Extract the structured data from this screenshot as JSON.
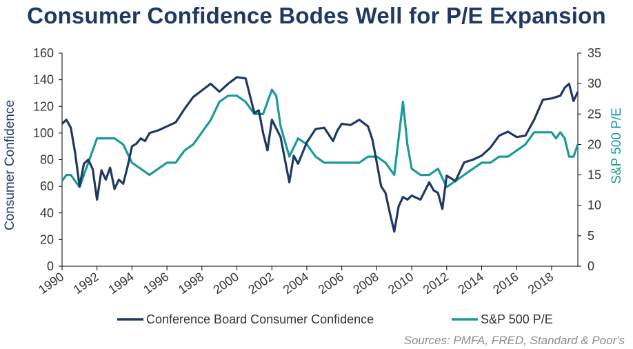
{
  "chart_data": {
    "type": "line",
    "title": "Consumer Confidence Bodes Well for P/E Expansion",
    "source": "Sources: PMFA, FRED, Standard & Poor's",
    "x_ticks": [
      "1990",
      "1992",
      "1994",
      "1996",
      "1998",
      "2000",
      "2002",
      "2004",
      "2006",
      "2008",
      "2010",
      "2012",
      "2014",
      "2016",
      "2018"
    ],
    "xlim": [
      1990,
      2019.5
    ],
    "left_axis": {
      "label": "Consumer Confidence",
      "lim": [
        0,
        160
      ],
      "ticks": [
        0,
        20,
        40,
        60,
        80,
        100,
        120,
        140,
        160
      ],
      "color": "#1f3864"
    },
    "right_axis": {
      "label": "S&P 500 P/E",
      "lim": [
        0,
        35
      ],
      "ticks": [
        0,
        5,
        10,
        15,
        20,
        25,
        30,
        35
      ],
      "color": "#1a9a9a"
    },
    "legend_position": "bottom",
    "grid": false,
    "series": [
      {
        "name": "Conference Board Consumer Confidence",
        "axis": "left",
        "color": "#1f3864",
        "x": [
          1990.0,
          1990.25,
          1990.5,
          1990.75,
          1991.0,
          1991.25,
          1991.5,
          1991.75,
          1992.0,
          1992.25,
          1992.5,
          1992.75,
          1993.0,
          1993.25,
          1993.5,
          1993.75,
          1994.0,
          1994.25,
          1994.5,
          1994.75,
          1995.0,
          1995.5,
          1996.0,
          1996.5,
          1997.0,
          1997.5,
          1998.0,
          1998.5,
          1999.0,
          1999.5,
          2000.0,
          2000.5,
          2001.0,
          2001.25,
          2001.5,
          2001.75,
          2002.0,
          2002.5,
          2003.0,
          2003.25,
          2003.5,
          2004.0,
          2004.5,
          2005.0,
          2005.5,
          2005.75,
          2006.0,
          2006.5,
          2007.0,
          2007.5,
          2007.75,
          2008.0,
          2008.25,
          2008.5,
          2008.75,
          2009.0,
          2009.25,
          2009.5,
          2009.75,
          2010.0,
          2010.5,
          2011.0,
          2011.25,
          2011.5,
          2011.75,
          2012.0,
          2012.5,
          2013.0,
          2013.5,
          2014.0,
          2014.5,
          2015.0,
          2015.5,
          2016.0,
          2016.5,
          2017.0,
          2017.5,
          2018.0,
          2018.5,
          2018.75,
          2019.0,
          2019.25,
          2019.5
        ],
        "values": [
          107,
          110,
          104,
          85,
          60,
          77,
          80,
          73,
          50,
          72,
          65,
          74,
          58,
          65,
          62,
          75,
          90,
          92,
          96,
          94,
          100,
          102,
          105,
          108,
          118,
          127,
          132,
          137,
          131,
          137,
          142,
          141,
          115,
          117,
          100,
          87,
          110,
          97,
          63,
          83,
          77,
          93,
          103,
          104,
          94,
          102,
          107,
          106,
          110,
          105,
          95,
          78,
          60,
          55,
          40,
          26,
          45,
          52,
          50,
          53,
          50,
          63,
          57,
          55,
          43,
          68,
          64,
          78,
          80,
          83,
          89,
          98,
          101,
          97,
          98,
          110,
          125,
          126,
          128,
          134,
          137,
          124,
          131
        ]
      },
      {
        "name": "S&P 500 P/E",
        "axis": "right",
        "color": "#1a9a9a",
        "x": [
          1990.0,
          1990.25,
          1990.5,
          1990.75,
          1991.0,
          1991.5,
          1992.0,
          1992.5,
          1993.0,
          1993.5,
          1994.0,
          1994.5,
          1995.0,
          1995.5,
          1996.0,
          1996.5,
          1997.0,
          1997.5,
          1998.0,
          1998.5,
          1999.0,
          1999.5,
          2000.0,
          2000.5,
          2001.0,
          2001.5,
          2002.0,
          2002.25,
          2002.5,
          2003.0,
          2003.5,
          2004.0,
          2004.5,
          2005.0,
          2005.5,
          2006.0,
          2006.5,
          2007.0,
          2007.5,
          2008.0,
          2008.5,
          2008.75,
          2009.0,
          2009.25,
          2009.5,
          2009.75,
          2010.0,
          2010.5,
          2011.0,
          2011.5,
          2012.0,
          2012.5,
          2013.0,
          2013.5,
          2014.0,
          2014.5,
          2015.0,
          2015.5,
          2016.0,
          2016.5,
          2017.0,
          2017.5,
          2018.0,
          2018.25,
          2018.5,
          2018.75,
          2019.0,
          2019.25,
          2019.5
        ],
        "values": [
          14,
          15,
          15,
          14,
          13,
          17,
          21,
          21,
          21,
          20,
          17,
          16,
          15,
          16,
          17,
          17,
          19,
          20,
          22,
          24,
          27,
          28,
          28,
          27,
          25,
          25,
          29,
          28,
          23,
          18,
          21,
          20,
          18,
          17,
          17,
          17,
          17,
          17,
          18,
          18,
          17,
          16,
          15,
          21,
          27,
          20,
          16,
          15,
          15,
          16,
          13,
          14,
          15,
          16,
          17,
          17,
          18,
          18,
          19,
          20,
          22,
          22,
          22,
          21,
          22,
          21,
          18,
          18,
          20
        ]
      }
    ]
  }
}
